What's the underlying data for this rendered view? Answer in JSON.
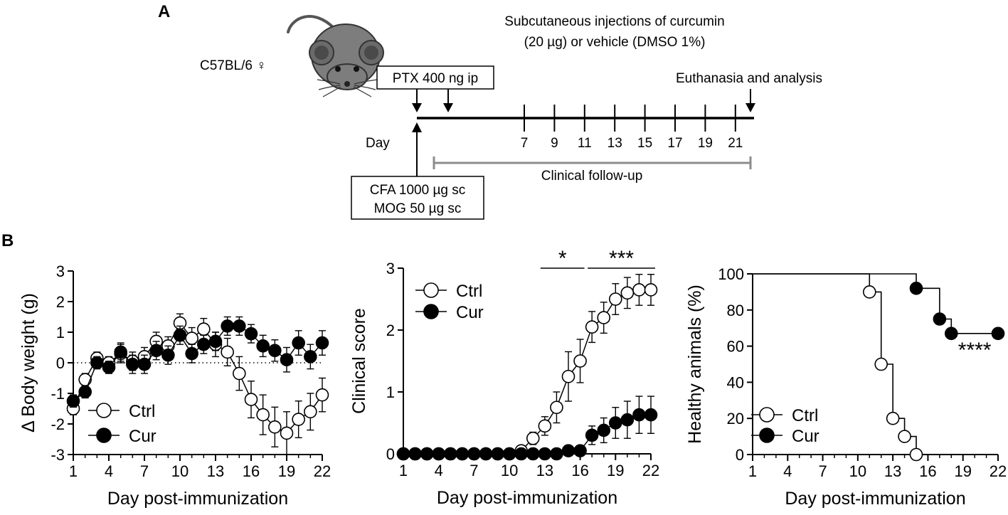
{
  "panel_a": {
    "letter": "A",
    "strain": "C57BL/6 ♀",
    "injection_line1": "Subcutaneous injections of  curcumin",
    "injection_line2": "(20 µg) or vehicle (DMSO 1%)",
    "ptx_label": "PTX 400 ng ip",
    "euthanasia_label": "Euthanasia and analysis",
    "day_label": "Day",
    "timeline_days": [
      "7",
      "9",
      "11",
      "13",
      "15",
      "17",
      "19",
      "21"
    ],
    "followup_label": "Clinical follow-up",
    "cfa_label": "CFA 1000 µg sc",
    "mog_label": "MOG 50 µg sc"
  },
  "panel_b": {
    "letter": "B"
  },
  "chart_data": [
    {
      "type": "line",
      "id": "weight",
      "title": "",
      "xlabel": "Day post-immunization",
      "ylabel": "Δ Body weight (g)",
      "xlim": [
        1,
        22
      ],
      "ylim": [
        -3,
        3
      ],
      "x_ticks": [
        1,
        4,
        7,
        10,
        13,
        16,
        19,
        22
      ],
      "y_ticks": [
        -3,
        -2,
        -1,
        0,
        1,
        2,
        3
      ],
      "zero_line": "dotted",
      "legend": {
        "position": "bottom-left"
      },
      "series": [
        {
          "name": "Ctrl",
          "marker": "open",
          "x": [
            1,
            2,
            3,
            4,
            5,
            6,
            7,
            8,
            9,
            10,
            11,
            12,
            13,
            14,
            15,
            16,
            17,
            18,
            19,
            20,
            21,
            22
          ],
          "values": [
            -1.5,
            -0.55,
            0.15,
            0.0,
            0.3,
            0.05,
            0.2,
            0.7,
            0.55,
            1.3,
            0.8,
            1.1,
            0.6,
            0.35,
            -0.35,
            -1.2,
            -1.7,
            -2.1,
            -2.3,
            -1.85,
            -1.6,
            -1.05
          ],
          "errors": [
            0.2,
            0.2,
            0.2,
            0.2,
            0.3,
            0.3,
            0.3,
            0.3,
            0.3,
            0.3,
            0.35,
            0.35,
            0.4,
            0.45,
            0.55,
            0.6,
            0.65,
            0.65,
            0.7,
            0.6,
            0.6,
            0.55
          ]
        },
        {
          "name": "Cur",
          "marker": "filled",
          "x": [
            1,
            2,
            3,
            4,
            5,
            6,
            7,
            8,
            9,
            10,
            11,
            12,
            13,
            14,
            15,
            16,
            17,
            18,
            19,
            20,
            21,
            22
          ],
          "values": [
            -1.25,
            -0.95,
            0.0,
            -0.15,
            0.35,
            -0.05,
            -0.05,
            0.4,
            0.25,
            0.9,
            0.3,
            0.6,
            0.7,
            1.2,
            1.2,
            0.95,
            0.55,
            0.4,
            0.1,
            0.65,
            0.2,
            0.65
          ],
          "errors": [
            0.2,
            0.2,
            0.2,
            0.2,
            0.3,
            0.3,
            0.3,
            0.3,
            0.3,
            0.3,
            0.3,
            0.3,
            0.3,
            0.3,
            0.3,
            0.3,
            0.35,
            0.35,
            0.4,
            0.4,
            0.4,
            0.4
          ]
        }
      ]
    },
    {
      "type": "line",
      "id": "score",
      "title": "",
      "xlabel": "Day post-immunization",
      "ylabel": "Clinical score",
      "xlim": [
        1,
        22
      ],
      "ylim": [
        0,
        3
      ],
      "x_ticks": [
        1,
        4,
        7,
        10,
        13,
        16,
        19,
        22
      ],
      "y_ticks": [
        0,
        1,
        2,
        3
      ],
      "legend": {
        "position": "top-left"
      },
      "significance": [
        {
          "label": "*",
          "x_from": 13,
          "x_to": 16
        },
        {
          "label": "***",
          "x_from": 17,
          "x_to": 22
        }
      ],
      "series": [
        {
          "name": "Ctrl",
          "marker": "open",
          "x": [
            1,
            2,
            3,
            4,
            5,
            6,
            7,
            8,
            9,
            10,
            11,
            12,
            13,
            14,
            15,
            16,
            17,
            18,
            19,
            20,
            21,
            22
          ],
          "values": [
            0,
            0,
            0,
            0,
            0,
            0,
            0,
            0,
            0,
            0,
            0.05,
            0.25,
            0.45,
            0.75,
            1.25,
            1.5,
            2.05,
            2.2,
            2.5,
            2.6,
            2.65,
            2.65
          ],
          "errors": [
            0,
            0,
            0,
            0,
            0,
            0,
            0,
            0,
            0,
            0,
            0.05,
            0.1,
            0.15,
            0.25,
            0.4,
            0.35,
            0.25,
            0.25,
            0.25,
            0.25,
            0.25,
            0.25
          ]
        },
        {
          "name": "Cur",
          "marker": "filled",
          "x": [
            1,
            2,
            3,
            4,
            5,
            6,
            7,
            8,
            9,
            10,
            11,
            12,
            13,
            14,
            15,
            16,
            17,
            18,
            19,
            20,
            21,
            22
          ],
          "values": [
            0,
            0,
            0,
            0,
            0,
            0,
            0,
            0,
            0,
            0,
            0,
            0,
            0,
            0,
            0.05,
            0.05,
            0.3,
            0.38,
            0.5,
            0.55,
            0.63,
            0.63
          ],
          "errors": [
            0,
            0,
            0,
            0,
            0,
            0,
            0,
            0,
            0,
            0,
            0,
            0,
            0,
            0,
            0.05,
            0.05,
            0.15,
            0.2,
            0.25,
            0.3,
            0.3,
            0.3
          ]
        }
      ]
    },
    {
      "type": "line",
      "id": "survival",
      "title": "",
      "xlabel": "Day post-immunization",
      "ylabel": "Healthy animals (%)",
      "xlim": [
        1,
        22
      ],
      "ylim": [
        0,
        100
      ],
      "x_ticks": [
        1,
        4,
        7,
        10,
        13,
        16,
        19,
        22
      ],
      "y_ticks": [
        0,
        20,
        40,
        60,
        80,
        100
      ],
      "step": true,
      "legend": {
        "position": "bottom-left"
      },
      "significance": [
        {
          "label": "****",
          "x": 20,
          "y": 54
        }
      ],
      "series": [
        {
          "name": "Ctrl",
          "marker": "open",
          "step_x": [
            1,
            11,
            12,
            13,
            14,
            15
          ],
          "step_y": [
            100,
            90,
            50,
            20,
            10,
            0
          ],
          "points_x": [
            11,
            12,
            13,
            14,
            15
          ],
          "points_y": [
            90,
            50,
            20,
            10,
            0
          ]
        },
        {
          "name": "Cur",
          "marker": "filled",
          "step_x": [
            1,
            15,
            17,
            18,
            22
          ],
          "step_y": [
            100,
            92,
            75,
            67,
            67
          ],
          "points_x": [
            15,
            17,
            18,
            22
          ],
          "points_y": [
            92,
            75,
            67,
            67
          ]
        }
      ]
    }
  ]
}
